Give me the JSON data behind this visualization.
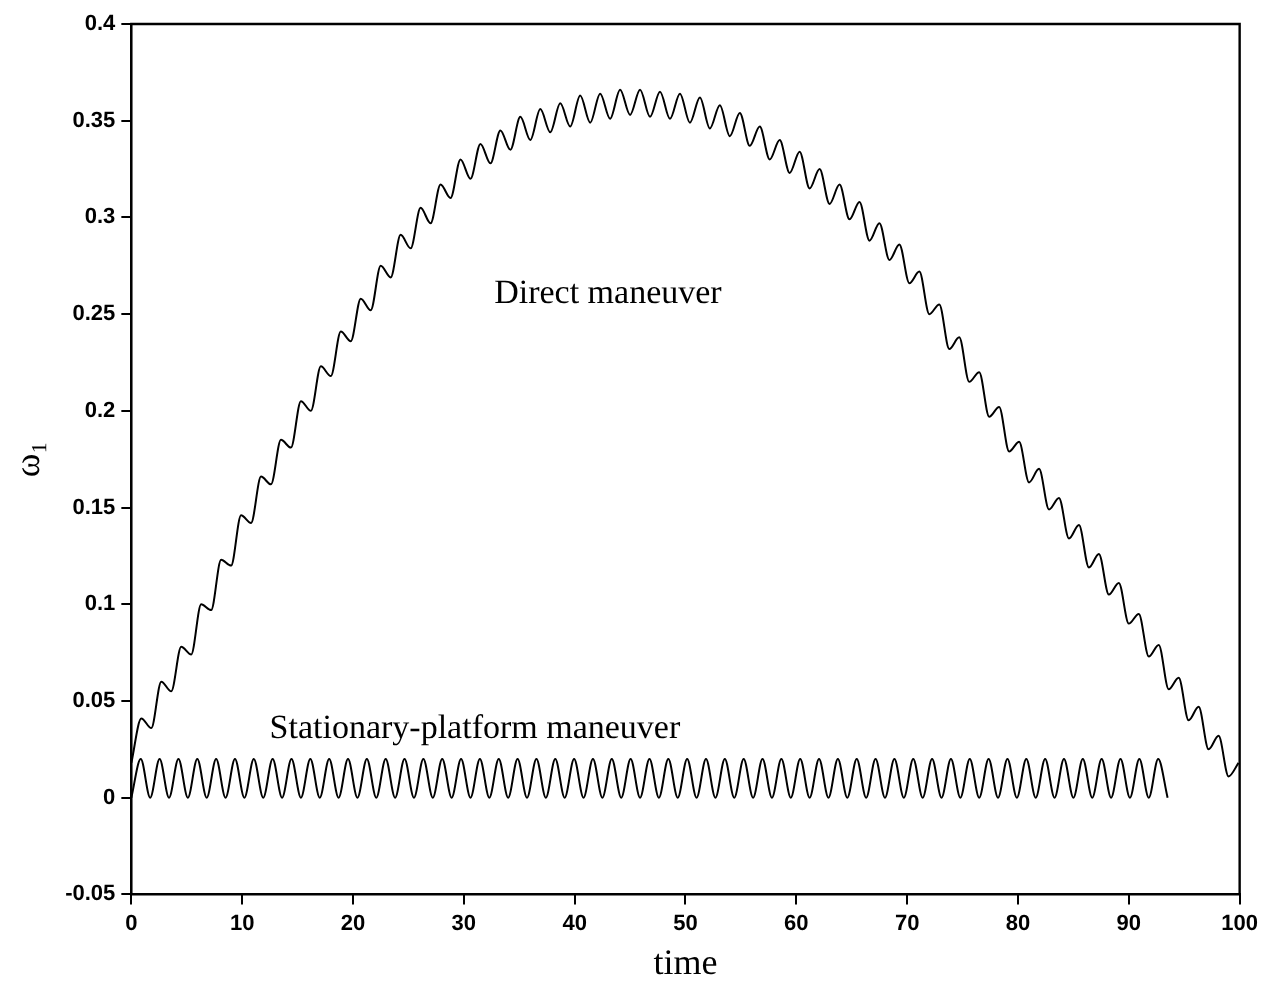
{
  "chart_data": {
    "type": "line",
    "xlabel": "time",
    "ylabel": "ω₁",
    "xlim": [
      0,
      100
    ],
    "ylim": [
      -0.05,
      0.4
    ],
    "xticks": [
      0,
      10,
      20,
      30,
      40,
      50,
      60,
      70,
      80,
      90,
      100
    ],
    "yticks": [
      -0.05,
      0,
      0.05,
      0.1,
      0.15,
      0.2,
      0.25,
      0.3,
      0.35,
      0.4
    ],
    "grid": false,
    "legend": false,
    "marker": "none",
    "line_style": "solid",
    "series": [
      {
        "name": "Direct maneuver",
        "color": "#000000",
        "x": [
          0,
          0.9,
          1.8,
          2.7,
          3.6,
          4.5,
          5.4,
          6.3,
          7.2,
          8.1,
          9,
          9.9,
          10.8,
          11.7,
          12.6,
          13.5,
          14.4,
          15.3,
          16.2,
          17.1,
          18,
          18.9,
          19.8,
          20.7,
          21.6,
          22.5,
          23.4,
          24.3,
          25.2,
          26.1,
          27,
          27.9,
          28.8,
          29.7,
          30.6,
          31.5,
          32.4,
          33.3,
          34.2,
          35.1,
          36,
          36.9,
          37.8,
          38.7,
          39.6,
          40.5,
          41.4,
          42.3,
          43.2,
          44.1,
          45,
          45.9,
          46.8,
          47.7,
          48.6,
          49.5,
          50.4,
          51.3,
          52.2,
          53.1,
          54,
          54.9,
          55.8,
          56.7,
          57.6,
          58.5,
          59.4,
          60.3,
          61.2,
          62.1,
          63,
          63.9,
          64.8,
          65.7,
          66.6,
          67.5,
          68.4,
          69.3,
          70.2,
          71.1,
          72,
          72.9,
          73.8,
          74.7,
          75.6,
          76.5,
          77.4,
          78.3,
          79.2,
          80.1,
          81,
          81.9,
          82.8,
          83.7,
          84.6,
          85.5,
          86.4,
          87.3,
          88.2,
          89.1,
          90,
          90.9,
          91.8,
          92.7,
          93.6,
          94.5,
          95.4,
          96.3,
          97.2,
          98.1,
          99,
          99.9
        ],
        "values": [
          0.018,
          0.041,
          0.036,
          0.06,
          0.055,
          0.078,
          0.074,
          0.1,
          0.097,
          0.123,
          0.12,
          0.146,
          0.142,
          0.166,
          0.162,
          0.185,
          0.181,
          0.205,
          0.2,
          0.223,
          0.218,
          0.241,
          0.236,
          0.258,
          0.252,
          0.275,
          0.269,
          0.291,
          0.284,
          0.305,
          0.297,
          0.317,
          0.31,
          0.33,
          0.32,
          0.338,
          0.328,
          0.345,
          0.335,
          0.352,
          0.34,
          0.356,
          0.344,
          0.359,
          0.347,
          0.363,
          0.349,
          0.364,
          0.351,
          0.366,
          0.353,
          0.366,
          0.352,
          0.365,
          0.351,
          0.364,
          0.349,
          0.362,
          0.346,
          0.358,
          0.342,
          0.354,
          0.337,
          0.347,
          0.33,
          0.34,
          0.323,
          0.334,
          0.315,
          0.325,
          0.307,
          0.317,
          0.299,
          0.308,
          0.288,
          0.297,
          0.278,
          0.286,
          0.266,
          0.272,
          0.25,
          0.255,
          0.232,
          0.238,
          0.215,
          0.22,
          0.197,
          0.202,
          0.179,
          0.184,
          0.163,
          0.17,
          0.149,
          0.155,
          0.134,
          0.141,
          0.119,
          0.126,
          0.105,
          0.111,
          0.09,
          0.095,
          0.073,
          0.079,
          0.056,
          0.062,
          0.04,
          0.047,
          0.025,
          0.032,
          0.011,
          0.018
        ]
      },
      {
        "name": "Stationary-platform maneuver",
        "color": "#000000",
        "x": [
          0,
          0.85,
          1.7,
          2.55,
          3.4,
          4.25,
          5.1,
          5.95,
          6.8,
          7.65,
          8.5,
          9.35,
          10.2,
          11.05,
          11.9,
          12.75,
          13.6,
          14.45,
          15.3,
          16.15,
          17,
          17.85,
          18.7,
          19.55,
          20.4,
          21.25,
          22.1,
          22.95,
          23.8,
          24.65,
          25.5,
          26.35,
          27.2,
          28.05,
          28.9,
          29.75,
          30.6,
          31.45,
          32.3,
          33.15,
          34,
          34.85,
          35.7,
          36.55,
          37.4,
          38.25,
          39.1,
          39.95,
          40.8,
          41.65,
          42.5,
          43.35,
          44.2,
          45.05,
          45.9,
          46.75,
          47.6,
          48.45,
          49.3,
          50.15,
          51,
          51.85,
          52.7,
          53.55,
          54.4,
          55.25,
          56.1,
          56.95,
          57.8,
          58.65,
          59.5,
          60.35,
          61.2,
          62.05,
          62.9,
          63.75,
          64.6,
          65.45,
          66.3,
          67.15,
          68,
          68.85,
          69.7,
          70.55,
          71.4,
          72.25,
          73.1,
          73.95,
          74.8,
          75.65,
          76.5,
          77.35,
          78.2,
          79.05,
          79.9,
          80.75,
          81.6,
          82.45,
          83.3,
          84.15,
          85,
          85.85,
          86.7,
          87.55,
          88.4,
          89.25,
          90.1,
          90.95,
          91.8,
          92.65,
          93.5
        ],
        "values": [
          0,
          0.02,
          0,
          0.02,
          0,
          0.02,
          0,
          0.02,
          0,
          0.02,
          0,
          0.02,
          0,
          0.02,
          0,
          0.02,
          0,
          0.02,
          0,
          0.02,
          0,
          0.02,
          0,
          0.02,
          0,
          0.02,
          0,
          0.02,
          0,
          0.02,
          0,
          0.02,
          0,
          0.02,
          0,
          0.02,
          0,
          0.02,
          0,
          0.02,
          0,
          0.02,
          0,
          0.02,
          0,
          0.02,
          0,
          0.02,
          0,
          0.02,
          0,
          0.02,
          0,
          0.02,
          0,
          0.02,
          0,
          0.02,
          0,
          0.02,
          0,
          0.02,
          0,
          0.02,
          0,
          0.02,
          0,
          0.02,
          0,
          0.02,
          0,
          0.02,
          0,
          0.02,
          0,
          0.02,
          0,
          0.02,
          0,
          0.02,
          0,
          0.02,
          0,
          0.02,
          0,
          0.02,
          0,
          0.02,
          0,
          0.02,
          0,
          0.02,
          0,
          0.02,
          0,
          0.02,
          0,
          0.02,
          0,
          0.02,
          0,
          0.02,
          0,
          0.02,
          0,
          0.02,
          0,
          0.02,
          0,
          0.02,
          0
        ]
      }
    ]
  }
}
